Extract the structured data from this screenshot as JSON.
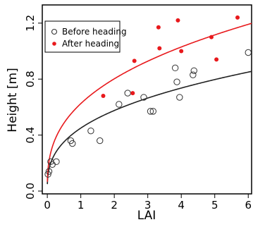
{
  "chart_data": {
    "type": "scatter",
    "xlabel": "LAI",
    "ylabel": "Height [m]",
    "xlim": [
      -0.15,
      6.1
    ],
    "ylim": [
      -0.02,
      1.33
    ],
    "xticks": [
      "0",
      "1",
      "2",
      "3",
      "4",
      "5",
      "6"
    ],
    "yticks": [
      "0.0",
      "0.4",
      "0.8",
      "1.2"
    ],
    "grid": false,
    "legend_position": "top-left",
    "legend": [
      {
        "label": "Before heading",
        "marker": "open-circle",
        "color": "#333333"
      },
      {
        "label": "After heading",
        "marker": "filled-circle",
        "color": "#e8191c"
      }
    ],
    "series": [
      {
        "name": "Before heading",
        "marker": "open-circle",
        "color": "#333333",
        "points": [
          {
            "x": 0.02,
            "y": 0.12
          },
          {
            "x": 0.05,
            "y": 0.14
          },
          {
            "x": 0.1,
            "y": 0.21
          },
          {
            "x": 0.15,
            "y": 0.19
          },
          {
            "x": 0.27,
            "y": 0.21
          },
          {
            "x": 0.7,
            "y": 0.36
          },
          {
            "x": 0.75,
            "y": 0.34
          },
          {
            "x": 1.3,
            "y": 0.43
          },
          {
            "x": 1.57,
            "y": 0.36
          },
          {
            "x": 2.14,
            "y": 0.62
          },
          {
            "x": 2.4,
            "y": 0.7
          },
          {
            "x": 2.88,
            "y": 0.67
          },
          {
            "x": 3.08,
            "y": 0.57
          },
          {
            "x": 3.16,
            "y": 0.57
          },
          {
            "x": 3.82,
            "y": 0.88
          },
          {
            "x": 3.87,
            "y": 0.78
          },
          {
            "x": 3.95,
            "y": 0.67
          },
          {
            "x": 4.35,
            "y": 0.83
          },
          {
            "x": 4.38,
            "y": 0.86
          },
          {
            "x": 6.0,
            "y": 0.99
          }
        ]
      },
      {
        "name": "After heading",
        "marker": "filled-circle",
        "color": "#e8191c",
        "points": [
          {
            "x": 1.67,
            "y": 0.68
          },
          {
            "x": 2.55,
            "y": 0.7
          },
          {
            "x": 2.6,
            "y": 0.93
          },
          {
            "x": 3.32,
            "y": 1.17
          },
          {
            "x": 3.35,
            "y": 1.02
          },
          {
            "x": 3.9,
            "y": 1.22
          },
          {
            "x": 4.0,
            "y": 1.0
          },
          {
            "x": 4.9,
            "y": 1.1
          },
          {
            "x": 5.05,
            "y": 0.94
          },
          {
            "x": 5.68,
            "y": 1.24
          }
        ]
      }
    ],
    "fit_curves": [
      {
        "series": "Before heading",
        "color": "#222222",
        "a": 0.45,
        "b": 0.355
      },
      {
        "series": "After heading",
        "color": "#e8191c",
        "a": 0.625,
        "b": 0.36
      }
    ]
  }
}
